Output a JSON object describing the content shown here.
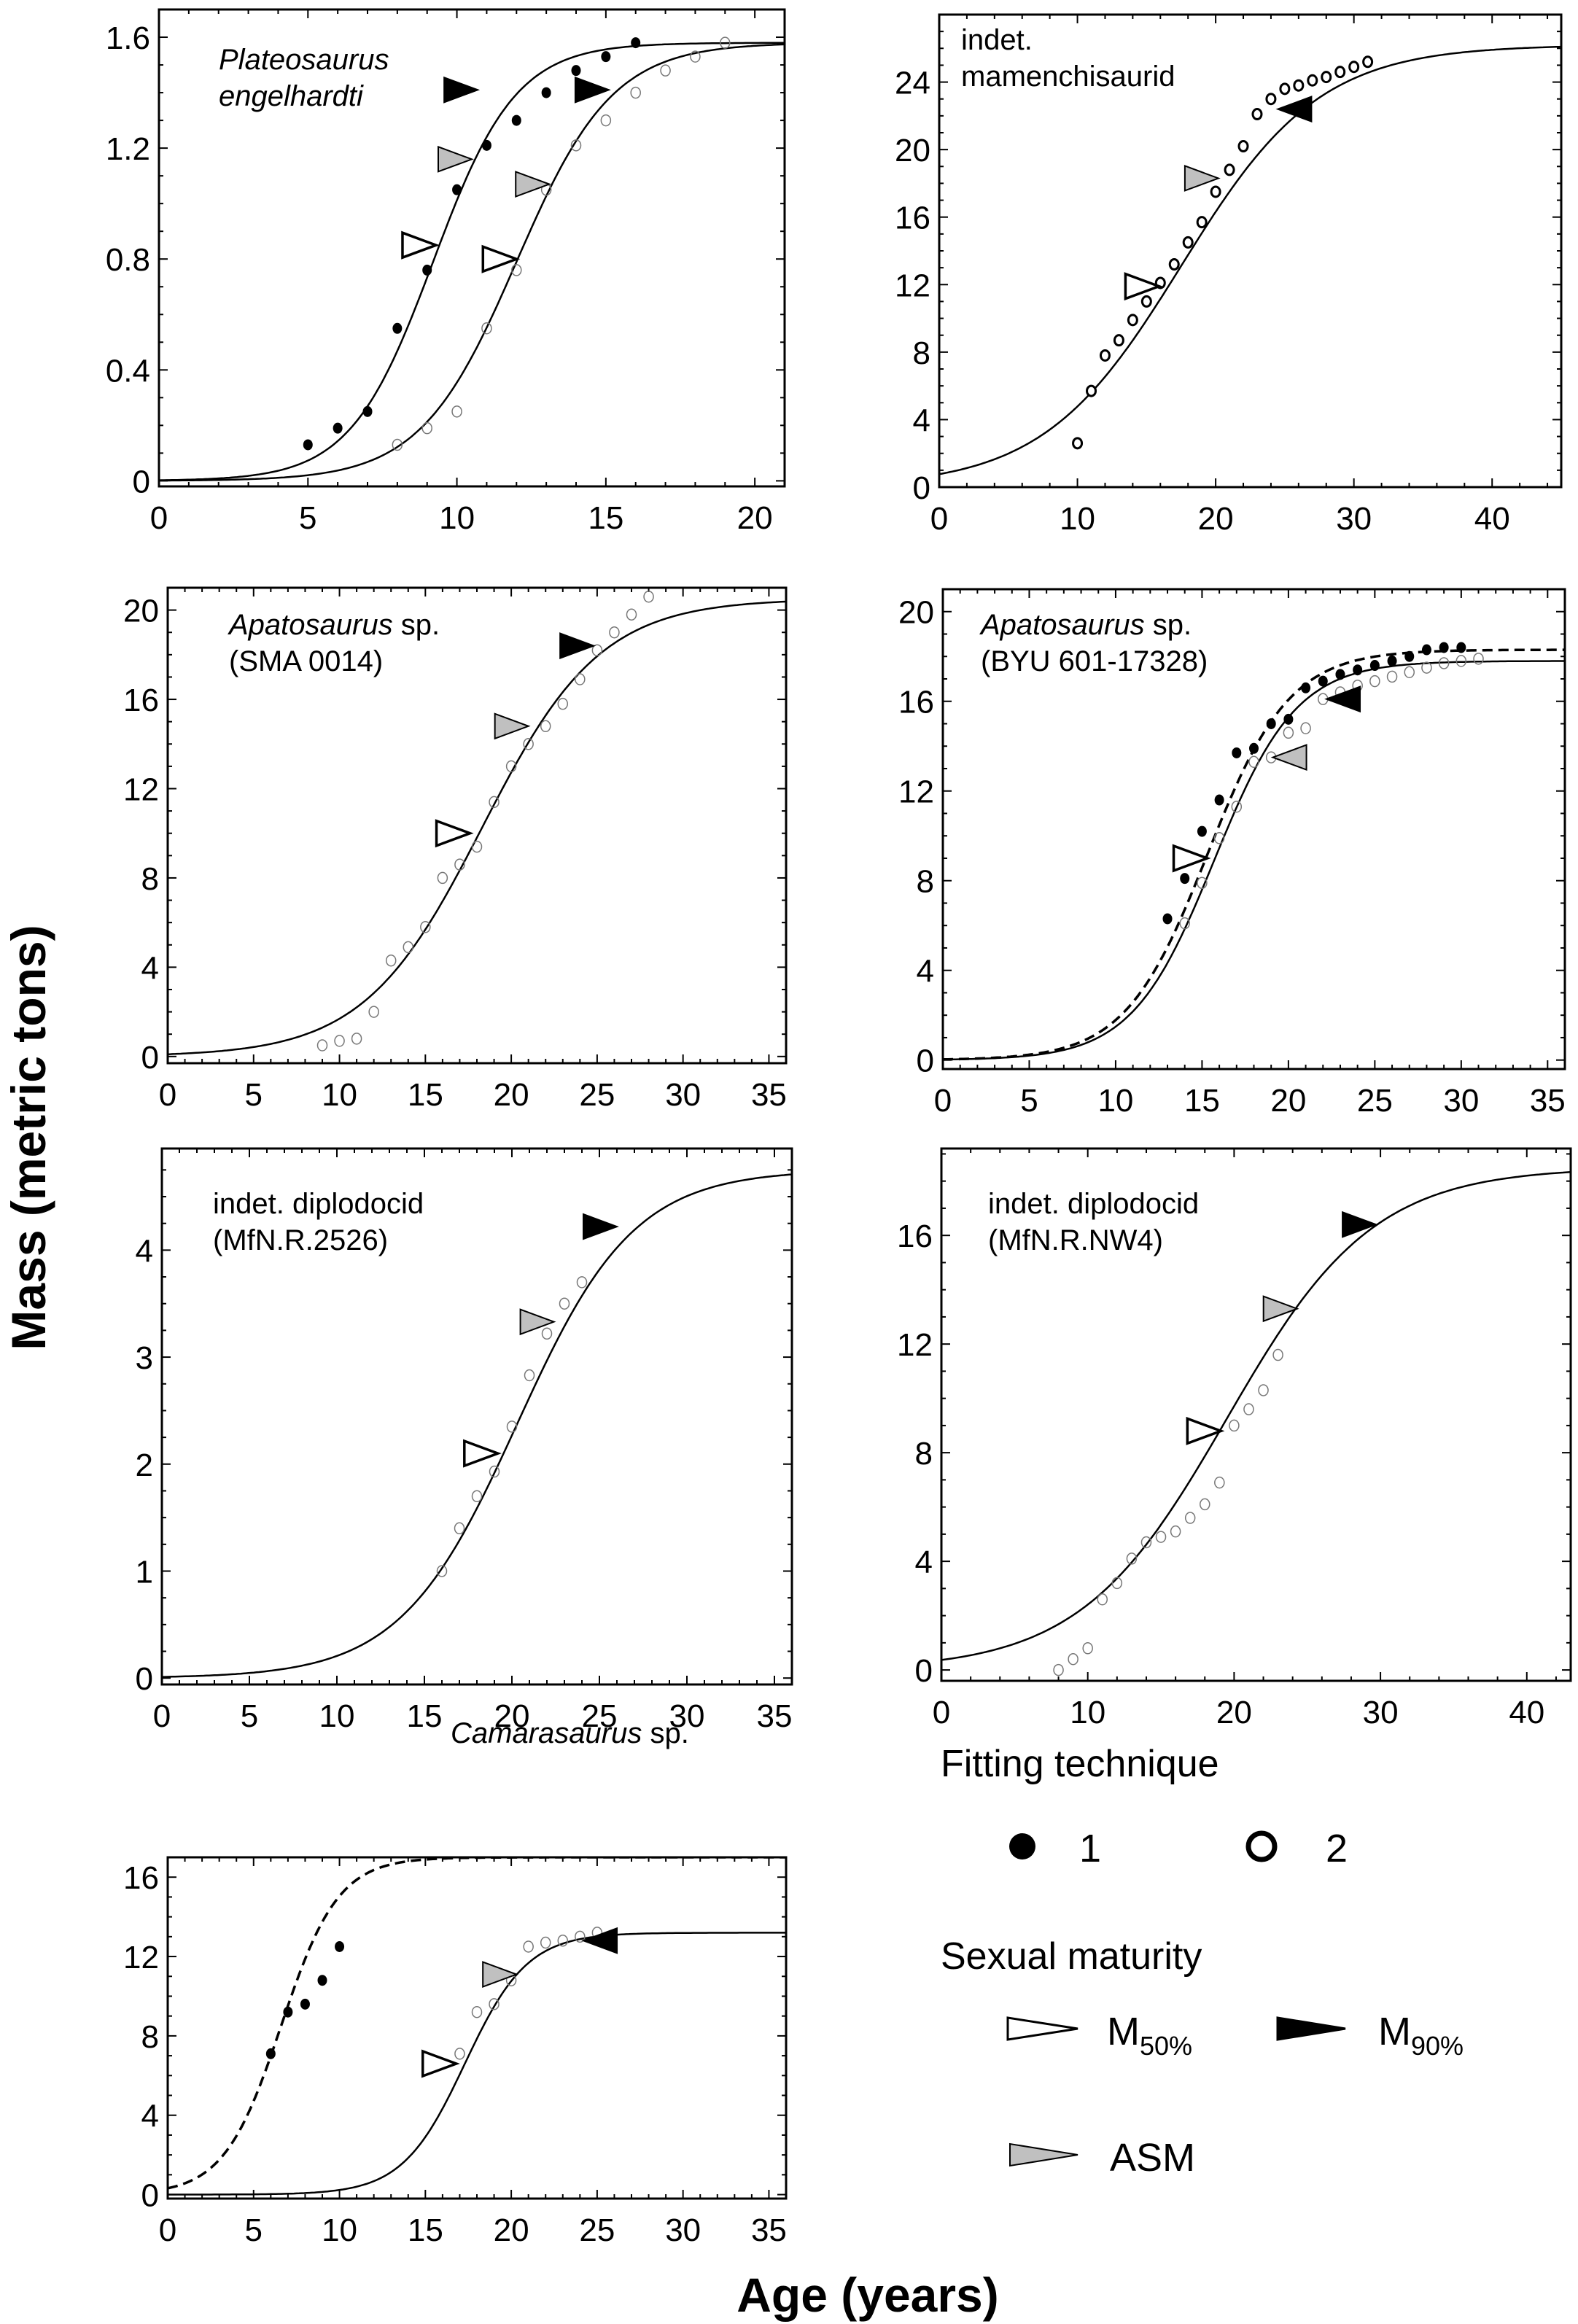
{
  "figure": {
    "xlabel": "Age (years)",
    "ylabel": "Mass (metric tons)"
  },
  "legend": {
    "fitting_title": "Fitting technique",
    "fitting_items": [
      {
        "marker": "filled-circle",
        "label": "1"
      },
      {
        "marker": "open-circle",
        "label": "2"
      }
    ],
    "maturity_title": "Sexual maturity",
    "maturity_items": [
      {
        "marker": "open-triangle",
        "label": "M",
        "sub": "50%"
      },
      {
        "marker": "filled-triangle",
        "label": "M",
        "sub": "90%"
      },
      {
        "marker": "gray-triangle",
        "label": "ASM",
        "sub": ""
      }
    ]
  },
  "colors": {
    "line": "#000000",
    "open_marker_stroke": "#777777",
    "asm_fill": "#c0c0c0",
    "m90_fill": "#000000",
    "m50_fill": "#ffffff"
  },
  "chart_data": [
    {
      "type": "scatter",
      "title_lines": [
        {
          "text": "Plateosaurus",
          "italic": true
        },
        {
          "text": "engelhardti",
          "italic": true
        }
      ],
      "xlim": [
        0,
        21
      ],
      "ylim": [
        -0.02,
        1.7
      ],
      "xticks": [
        0,
        5,
        10,
        15,
        20
      ],
      "yticks": [
        0,
        0.4,
        0.8,
        1.2,
        1.6
      ],
      "ytick_labels": [
        "0",
        "0.4",
        "0.8",
        "1.2",
        "1.6"
      ],
      "curves": [
        {
          "name": "fit technique 1",
          "style": "solid",
          "A": 1.58,
          "k": 0.72,
          "t0": 9.2,
          "y0": 0
        },
        {
          "name": "fit technique 2",
          "style": "solid",
          "A": 1.58,
          "k": 0.62,
          "t0": 12.0,
          "y0": 0
        }
      ],
      "series": [
        {
          "name": "Fitting technique 1",
          "marker": "filled",
          "x": [
            5,
            6,
            7,
            8,
            9,
            10,
            11,
            12,
            13,
            14,
            15,
            16
          ],
          "y": [
            0.13,
            0.19,
            0.25,
            0.55,
            0.76,
            1.05,
            1.21,
            1.3,
            1.4,
            1.48,
            1.53,
            1.58
          ]
        },
        {
          "name": "Fitting technique 2",
          "marker": "open",
          "x": [
            8,
            9,
            10,
            11,
            12,
            13,
            14,
            15,
            16,
            17,
            18,
            19
          ],
          "y": [
            0.13,
            0.19,
            0.25,
            0.55,
            0.76,
            1.05,
            1.21,
            1.3,
            1.4,
            1.48,
            1.53,
            1.58
          ]
        }
      ],
      "markers": [
        {
          "type": "M50",
          "x": 9.3,
          "y": 0.85,
          "dir": "right"
        },
        {
          "type": "ASM",
          "x": 10.5,
          "y": 1.16,
          "dir": "right"
        },
        {
          "type": "M90",
          "x": 10.7,
          "y": 1.41,
          "dir": "right"
        },
        {
          "type": "M50",
          "x": 12.0,
          "y": 0.8,
          "dir": "right"
        },
        {
          "type": "ASM",
          "x": 13.1,
          "y": 1.07,
          "dir": "right"
        },
        {
          "type": "M90",
          "x": 15.1,
          "y": 1.41,
          "dir": "right"
        }
      ]
    },
    {
      "type": "scatter",
      "title_lines": [
        {
          "text": "indet.",
          "italic": false
        },
        {
          "text": "mamenchisaurid",
          "italic": false
        }
      ],
      "xlim": [
        0,
        45
      ],
      "ylim": [
        0,
        28
      ],
      "xticks": [
        0,
        10,
        20,
        30,
        40
      ],
      "yticks": [
        0,
        4,
        8,
        12,
        16,
        20,
        24
      ],
      "ytick_labels": [
        "0",
        "4",
        "8",
        "12",
        "16",
        "20",
        "24"
      ],
      "curves": [
        {
          "name": "fit technique 2",
          "style": "solid",
          "A": 26.2,
          "k": 0.2,
          "t0": 17.5,
          "y0": 0
        }
      ],
      "series": [
        {
          "name": "Fitting technique 2",
          "marker": "open-bold",
          "x": [
            10,
            11,
            12,
            13,
            14,
            15,
            16,
            17,
            18,
            19,
            20,
            21,
            22,
            23,
            24,
            25,
            26,
            27,
            28,
            29,
            30,
            31
          ],
          "y": [
            2.6,
            5.7,
            7.8,
            8.7,
            9.9,
            11.0,
            12.1,
            13.2,
            14.5,
            15.7,
            17.5,
            18.8,
            20.2,
            22.1,
            23.0,
            23.6,
            23.8,
            24.1,
            24.3,
            24.6,
            24.9,
            25.2
          ]
        }
      ],
      "markers": [
        {
          "type": "M50",
          "x": 15.9,
          "y": 11.9,
          "dir": "right"
        },
        {
          "type": "ASM",
          "x": 20.2,
          "y": 18.3,
          "dir": "right"
        },
        {
          "type": "M90",
          "x": 24.5,
          "y": 22.4,
          "dir": "left"
        }
      ]
    },
    {
      "type": "scatter",
      "title_lines": [
        {
          "text": "Apatosaurus",
          "italic": true,
          "suffix": " sp."
        },
        {
          "text": "(SMA 0014)",
          "italic": false
        }
      ],
      "xlim": [
        0,
        36
      ],
      "ylim": [
        -0.3,
        21
      ],
      "xticks": [
        0,
        5,
        10,
        15,
        20,
        25,
        30,
        35
      ],
      "yticks": [
        0,
        4,
        8,
        12,
        16,
        20
      ],
      "ytick_labels": [
        "0",
        "4",
        "8",
        "12",
        "16",
        "20"
      ],
      "curves": [
        {
          "name": "fit technique 2",
          "style": "solid",
          "A": 20.5,
          "k": 0.29,
          "t0": 18.3,
          "y0": 0
        }
      ],
      "series": [
        {
          "name": "Fitting technique 2",
          "marker": "open",
          "x": [
            9,
            10,
            11,
            12,
            13,
            14,
            15,
            16,
            17,
            18,
            19,
            20,
            21,
            22,
            23,
            24,
            25,
            26,
            27,
            28
          ],
          "y": [
            0.5,
            0.7,
            0.8,
            2.0,
            4.3,
            4.9,
            5.8,
            8.0,
            8.6,
            9.4,
            11.4,
            13.0,
            14.0,
            14.8,
            15.8,
            16.9,
            18.2,
            19.0,
            19.8,
            20.6
          ]
        }
      ],
      "markers": [
        {
          "type": "M50",
          "x": 17.6,
          "y": 10.0,
          "dir": "right"
        },
        {
          "type": "ASM",
          "x": 21.0,
          "y": 14.8,
          "dir": "right"
        },
        {
          "type": "M90",
          "x": 24.8,
          "y": 18.4,
          "dir": "right"
        }
      ]
    },
    {
      "type": "scatter",
      "title_lines": [
        {
          "text": "Apatosaurus",
          "italic": true,
          "suffix": " sp."
        },
        {
          "text": "(BYU 601-17328)",
          "italic": false
        }
      ],
      "xlim": [
        0,
        36
      ],
      "ylim": [
        -0.4,
        21
      ],
      "xticks": [
        0,
        5,
        10,
        15,
        20,
        25,
        30,
        35
      ],
      "yticks": [
        0,
        4,
        8,
        12,
        16,
        20
      ],
      "ytick_labels": [
        "0",
        "4",
        "8",
        "12",
        "16",
        "20"
      ],
      "curves": [
        {
          "name": "fit technique 1",
          "style": "dashed",
          "A": 18.3,
          "k": 0.42,
          "t0": 15.3,
          "y0": 0
        },
        {
          "name": "fit technique 2",
          "style": "solid",
          "A": 17.8,
          "k": 0.42,
          "t0": 15.7,
          "y0": 0
        }
      ],
      "series": [
        {
          "name": "Fitting technique 1",
          "marker": "filled",
          "x": [
            13,
            14,
            15,
            16,
            17,
            18,
            19,
            20,
            21,
            22,
            23,
            24,
            25,
            26,
            27,
            28,
            29,
            30
          ],
          "y": [
            6.3,
            8.1,
            10.2,
            11.6,
            13.7,
            13.9,
            15.0,
            15.2,
            16.6,
            16.9,
            17.2,
            17.4,
            17.6,
            17.8,
            18.0,
            18.3,
            18.4,
            18.4
          ]
        },
        {
          "name": "Fitting technique 2",
          "marker": "open",
          "x": [
            14,
            15,
            16,
            17,
            18,
            19,
            20,
            21,
            22,
            23,
            24,
            25,
            26,
            27,
            28,
            29,
            30,
            31
          ],
          "y": [
            6.1,
            7.9,
            9.9,
            11.3,
            13.3,
            13.5,
            14.6,
            14.8,
            16.1,
            16.4,
            16.7,
            16.9,
            17.1,
            17.3,
            17.5,
            17.7,
            17.8,
            17.9
          ]
        }
      ],
      "markers": [
        {
          "type": "M50",
          "x": 15.3,
          "y": 9.0,
          "dir": "right"
        },
        {
          "type": "ASM",
          "x": 19.1,
          "y": 13.5,
          "dir": "left"
        },
        {
          "type": "M90",
          "x": 22.2,
          "y": 16.1,
          "dir": "left"
        }
      ]
    },
    {
      "type": "scatter",
      "title_lines": [
        {
          "text": "indet. diplodocid",
          "italic": false
        },
        {
          "text": "(MfN.R.2526)",
          "italic": false
        }
      ],
      "xlim": [
        0,
        36
      ],
      "ylim": [
        -0.06,
        4.95
      ],
      "xticks": [
        0,
        5,
        10,
        15,
        20,
        25,
        30,
        35
      ],
      "yticks": [
        0,
        1,
        2,
        3,
        4
      ],
      "ytick_labels": [
        "0",
        "1",
        "2",
        "3",
        "4"
      ],
      "curves": [
        {
          "name": "fit technique 2",
          "style": "solid",
          "A": 4.75,
          "k": 0.3,
          "t0": 20.3,
          "y0": 0
        }
      ],
      "series": [
        {
          "name": "Fitting technique 2",
          "marker": "open",
          "x": [
            16,
            17,
            18,
            19,
            20,
            21,
            22,
            23,
            24
          ],
          "y": [
            1.0,
            1.4,
            1.7,
            1.93,
            2.35,
            2.83,
            3.22,
            3.5,
            3.7
          ]
        }
      ],
      "markers": [
        {
          "type": "M50",
          "x": 19.2,
          "y": 2.1,
          "dir": "right"
        },
        {
          "type": "ASM",
          "x": 22.4,
          "y": 3.33,
          "dir": "right"
        },
        {
          "type": "M90",
          "x": 26.0,
          "y": 4.22,
          "dir": "right"
        }
      ]
    },
    {
      "type": "scatter",
      "title_lines": [
        {
          "text": "indet. diplodocid",
          "italic": false
        },
        {
          "text": "(MfN.R.NW4)",
          "italic": false
        }
      ],
      "xlim": [
        0,
        43
      ],
      "ylim": [
        -0.4,
        19.2
      ],
      "xticks": [
        0,
        10,
        20,
        30,
        40
      ],
      "yticks": [
        0,
        4,
        8,
        12,
        16
      ],
      "ytick_labels": [
        "0",
        "4",
        "8",
        "12",
        "16"
      ],
      "curves": [
        {
          "name": "fit technique 2",
          "style": "solid",
          "A": 18.5,
          "k": 0.2,
          "t0": 19.5,
          "y0": 0
        }
      ],
      "series": [
        {
          "name": "Fitting technique 2",
          "marker": "open",
          "x": [
            8,
            9,
            10,
            11,
            12,
            13,
            14,
            15,
            16,
            17,
            18,
            19,
            20,
            21,
            22,
            23
          ],
          "y": [
            0.0,
            0.4,
            0.8,
            2.6,
            3.2,
            4.1,
            4.7,
            4.9,
            5.1,
            5.6,
            6.1,
            6.9,
            9.0,
            9.6,
            10.3,
            11.6
          ]
        }
      ],
      "markers": [
        {
          "type": "M50",
          "x": 19.1,
          "y": 8.8,
          "dir": "right"
        },
        {
          "type": "ASM",
          "x": 24.3,
          "y": 13.3,
          "dir": "right"
        },
        {
          "type": "M90",
          "x": 29.7,
          "y": 16.4,
          "dir": "right"
        }
      ]
    },
    {
      "type": "scatter",
      "title_lines": [
        {
          "text": "Camarasaurus",
          "italic": true,
          "suffix": " sp."
        }
      ],
      "xlim": [
        0,
        36
      ],
      "ylim": [
        -0.2,
        17
      ],
      "xticks": [
        0,
        5,
        10,
        15,
        20,
        25,
        30,
        35
      ],
      "yticks": [
        0,
        4,
        8,
        12,
        16
      ],
      "ytick_labels": [
        "0",
        "4",
        "8",
        "12",
        "16"
      ],
      "curves": [
        {
          "name": "fit technique 1",
          "style": "dashed",
          "A": 17.0,
          "k": 0.6,
          "t0": 6.6,
          "y0": 0
        },
        {
          "name": "fit technique 2",
          "style": "solid",
          "A": 13.2,
          "k": 0.55,
          "t0": 17.3,
          "y0": 0
        }
      ],
      "series": [
        {
          "name": "Fitting technique 1",
          "marker": "filled",
          "x": [
            6,
            7,
            8,
            9,
            10
          ],
          "y": [
            7.1,
            9.2,
            9.6,
            10.8,
            12.5
          ]
        },
        {
          "name": "Fitting technique 2",
          "marker": "open",
          "x": [
            17,
            18,
            19,
            20,
            21,
            22,
            23,
            24,
            25
          ],
          "y": [
            7.1,
            9.2,
            9.6,
            10.8,
            12.5,
            12.7,
            12.8,
            13.0,
            13.2
          ]
        }
      ],
      "markers": [
        {
          "type": "M50",
          "x": 16.8,
          "y": 6.6,
          "dir": "right"
        },
        {
          "type": "ASM",
          "x": 20.3,
          "y": 11.1,
          "dir": "right"
        },
        {
          "type": "M90",
          "x": 24.2,
          "y": 12.8,
          "dir": "left"
        }
      ]
    }
  ]
}
